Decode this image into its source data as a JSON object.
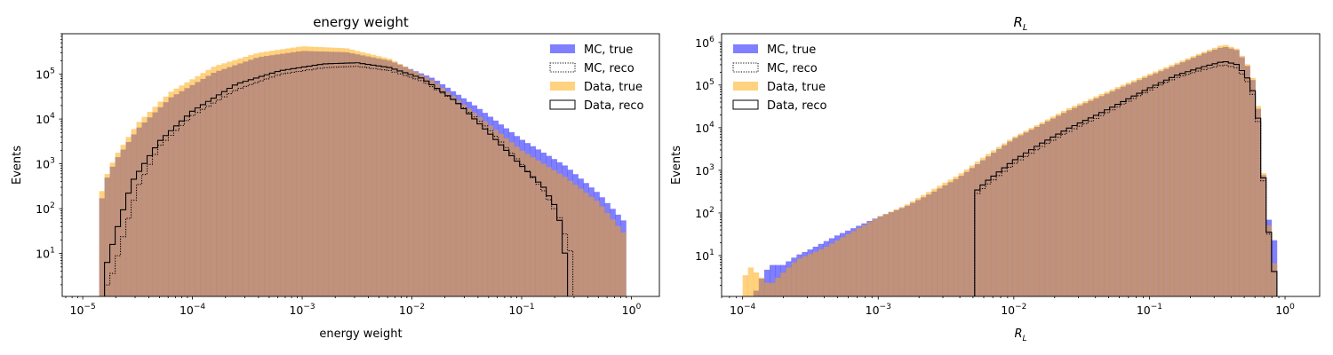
{
  "chart_data": [
    {
      "type": "histogram",
      "title": "energy weight",
      "xlabel": "energy weight",
      "ylabel": "Events",
      "xscale": "log",
      "yscale": "log",
      "xlim": [
        6.5e-06,
        1.8
      ],
      "ylim": [
        1.1,
        800000
      ],
      "xticks": [
        {
          "v": 1e-05,
          "base": "10",
          "exp": "−5"
        },
        {
          "v": 0.0001,
          "base": "10",
          "exp": "−4"
        },
        {
          "v": 0.001,
          "base": "10",
          "exp": "−3"
        },
        {
          "v": 0.01,
          "base": "10",
          "exp": "−2"
        },
        {
          "v": 0.1,
          "base": "10",
          "exp": "−1"
        },
        {
          "v": 1,
          "base": "10",
          "exp": "0"
        }
      ],
      "yticks": [
        {
          "v": 10,
          "base": "10",
          "exp": "1"
        },
        {
          "v": 100,
          "base": "10",
          "exp": "2"
        },
        {
          "v": 1000,
          "base": "10",
          "exp": "3"
        },
        {
          "v": 10000,
          "base": "10",
          "exp": "4"
        },
        {
          "v": 100000,
          "base": "10",
          "exp": "5"
        }
      ],
      "legend_position": "top-right",
      "bins": {
        "log10_min": -4.85,
        "log10_max": 0.0,
        "count": 100
      },
      "series": [
        {
          "name": "MC, true",
          "style": "filled",
          "color": "#0000ff",
          "opacity": 0.5,
          "points": [
            [
              -4.85,
              80
            ],
            [
              -4.8,
              380
            ],
            [
              -4.7,
              1200
            ],
            [
              -4.5,
              6000
            ],
            [
              -4.2,
              30000
            ],
            [
              -3.8,
              110000
            ],
            [
              -3.4,
              240000
            ],
            [
              -3.0,
              330000
            ],
            [
              -2.6,
              310000
            ],
            [
              -2.2,
              200000
            ],
            [
              -1.8,
              80000
            ],
            [
              -1.4,
              18000
            ],
            [
              -1.0,
              3500
            ],
            [
              -0.6,
              900
            ],
            [
              -0.3,
              220
            ],
            [
              -0.03,
              42
            ]
          ]
        },
        {
          "name": "MC, reco",
          "style": "dotted",
          "color": "#000000",
          "points": [
            [
              -4.8,
              1.5
            ],
            [
              -4.72,
              4
            ],
            [
              -4.62,
              30
            ],
            [
              -4.5,
              300
            ],
            [
              -4.3,
              2500
            ],
            [
              -4.0,
              12000
            ],
            [
              -3.6,
              45000
            ],
            [
              -3.2,
              100000
            ],
            [
              -2.8,
              140000
            ],
            [
              -2.5,
              150000
            ],
            [
              -2.2,
              120000
            ],
            [
              -1.9,
              70000
            ],
            [
              -1.6,
              25000
            ],
            [
              -1.3,
              6000
            ],
            [
              -1.0,
              1000
            ],
            [
              -0.8,
              250
            ],
            [
              -0.65,
              60
            ],
            [
              -0.55,
              10
            ],
            [
              -0.53,
              1.3
            ]
          ]
        },
        {
          "name": "Data, true",
          "style": "filled",
          "color": "#ffa500",
          "opacity": 0.5,
          "points": [
            [
              -4.85,
              140
            ],
            [
              -4.8,
              450
            ],
            [
              -4.7,
              1500
            ],
            [
              -4.5,
              8000
            ],
            [
              -4.2,
              40000
            ],
            [
              -3.8,
              150000
            ],
            [
              -3.4,
              300000
            ],
            [
              -3.0,
              420000
            ],
            [
              -2.6,
              380000
            ],
            [
              -2.2,
              220000
            ],
            [
              -1.8,
              70000
            ],
            [
              -1.4,
              12000
            ],
            [
              -1.0,
              2000
            ],
            [
              -0.6,
              500
            ],
            [
              -0.3,
              140
            ],
            [
              -0.03,
              22
            ]
          ]
        },
        {
          "name": "Data, reco",
          "style": "step",
          "color": "#000000",
          "points": [
            [
              -4.82,
              1.3
            ],
            [
              -4.78,
              6
            ],
            [
              -4.68,
              40
            ],
            [
              -4.55,
              400
            ],
            [
              -4.3,
              3200
            ],
            [
              -4.0,
              15000
            ],
            [
              -3.6,
              60000
            ],
            [
              -3.2,
              120000
            ],
            [
              -2.8,
              170000
            ],
            [
              -2.5,
              180000
            ],
            [
              -2.2,
              140000
            ],
            [
              -1.9,
              80000
            ],
            [
              -1.6,
              25000
            ],
            [
              -1.3,
              5000
            ],
            [
              -1.0,
              900
            ],
            [
              -0.8,
              300
            ],
            [
              -0.7,
              120
            ],
            [
              -0.62,
              30
            ],
            [
              -0.58,
              1.3
            ]
          ]
        }
      ]
    },
    {
      "type": "histogram",
      "title": "R",
      "title_sub": "L",
      "xlabel": "R",
      "xlabel_sub": "L",
      "ylabel": "Events",
      "xscale": "log",
      "yscale": "log",
      "xlim": [
        7e-05,
        1.8
      ],
      "ylim": [
        1.1,
        1600000
      ],
      "xticks": [
        {
          "v": 0.0001,
          "base": "10",
          "exp": "−4"
        },
        {
          "v": 0.001,
          "base": "10",
          "exp": "−3"
        },
        {
          "v": 0.01,
          "base": "10",
          "exp": "−2"
        },
        {
          "v": 0.1,
          "base": "10",
          "exp": "−1"
        },
        {
          "v": 1,
          "base": "10",
          "exp": "0"
        }
      ],
      "yticks": [
        {
          "v": 10,
          "base": "10",
          "exp": "1"
        },
        {
          "v": 100,
          "base": "10",
          "exp": "2"
        },
        {
          "v": 1000,
          "base": "10",
          "exp": "3"
        },
        {
          "v": 10000,
          "base": "10",
          "exp": "4"
        },
        {
          "v": 100000,
          "base": "10",
          "exp": "5"
        },
        {
          "v": 1000000,
          "base": "10",
          "exp": "6"
        }
      ],
      "legend_position": "top-left",
      "bins": {
        "log10_min": -4.0,
        "log10_max": -0.02,
        "count": 100
      },
      "series": [
        {
          "name": "MC, true",
          "style": "filled",
          "color": "#0000ff",
          "opacity": 0.5,
          "points": [
            [
              -4.0,
              0
            ],
            [
              -3.89,
              2
            ],
            [
              -3.8,
              6
            ],
            [
              -3.7,
              6
            ],
            [
              -3.6,
              10
            ],
            [
              -3.5,
              14
            ],
            [
              -3.3,
              30
            ],
            [
              -3.0,
              80
            ],
            [
              -2.8,
              140
            ],
            [
              -2.6,
              300
            ],
            [
              -2.4,
              700
            ],
            [
              -2.2,
              2000
            ],
            [
              -2.0,
              5500
            ],
            [
              -1.6,
              25000
            ],
            [
              -1.2,
              90000
            ],
            [
              -0.8,
              300000
            ],
            [
              -0.6,
              550000
            ],
            [
              -0.45,
              800000
            ],
            [
              -0.35,
              650000
            ],
            [
              -0.25,
              200000
            ],
            [
              -0.2,
              30000
            ],
            [
              -0.16,
              800
            ],
            [
              -0.13,
              120
            ],
            [
              -0.1,
              25
            ],
            [
              -0.05,
              20
            ]
          ]
        },
        {
          "name": "MC, reco",
          "style": "dotted",
          "color": "#000000",
          "points": [
            [
              -2.3,
              1.2
            ],
            [
              -2.29,
              250
            ],
            [
              -2.2,
              450
            ],
            [
              -2.0,
              1400
            ],
            [
              -1.8,
              3500
            ],
            [
              -1.6,
              8000
            ],
            [
              -1.4,
              16000
            ],
            [
              -1.2,
              35000
            ],
            [
              -1.0,
              75000
            ],
            [
              -0.8,
              150000
            ],
            [
              -0.6,
              230000
            ],
            [
              -0.45,
              300000
            ],
            [
              -0.35,
              250000
            ],
            [
              -0.25,
              90000
            ],
            [
              -0.2,
              15000
            ],
            [
              -0.16,
              600
            ],
            [
              -0.13,
              60
            ],
            [
              -0.1,
              10
            ],
            [
              -0.05,
              1.2
            ]
          ]
        },
        {
          "name": "Data, true",
          "style": "filled",
          "color": "#ffa500",
          "opacity": 0.5,
          "points": [
            [
              -4.0,
              2
            ],
            [
              -3.96,
              6
            ],
            [
              -3.9,
              4
            ],
            [
              -3.8,
              2
            ],
            [
              -3.6,
              8
            ],
            [
              -3.4,
              15
            ],
            [
              -3.2,
              35
            ],
            [
              -3.0,
              80
            ],
            [
              -2.8,
              150
            ],
            [
              -2.6,
              350
            ],
            [
              -2.4,
              800
            ],
            [
              -2.2,
              2300
            ],
            [
              -2.0,
              6000
            ],
            [
              -1.6,
              28000
            ],
            [
              -1.2,
              100000
            ],
            [
              -0.8,
              330000
            ],
            [
              -0.6,
              600000
            ],
            [
              -0.45,
              900000
            ],
            [
              -0.35,
              700000
            ],
            [
              -0.25,
              220000
            ],
            [
              -0.2,
              35000
            ],
            [
              -0.16,
              900
            ],
            [
              -0.13,
              100
            ],
            [
              -0.1,
              15
            ],
            [
              -0.05,
              2
            ]
          ]
        },
        {
          "name": "Data, reco",
          "style": "step",
          "color": "#000000",
          "points": [
            [
              -2.3,
              1.2
            ],
            [
              -2.29,
              300
            ],
            [
              -2.2,
              550
            ],
            [
              -2.0,
              1700
            ],
            [
              -1.8,
              4200
            ],
            [
              -1.6,
              9500
            ],
            [
              -1.4,
              19000
            ],
            [
              -1.2,
              40000
            ],
            [
              -1.0,
              85000
            ],
            [
              -0.8,
              170000
            ],
            [
              -0.6,
              270000
            ],
            [
              -0.45,
              360000
            ],
            [
              -0.35,
              300000
            ],
            [
              -0.25,
              110000
            ],
            [
              -0.2,
              18000
            ],
            [
              -0.16,
              700
            ],
            [
              -0.13,
              70
            ],
            [
              -0.1,
              10
            ],
            [
              -0.05,
              1.2
            ]
          ]
        }
      ]
    }
  ]
}
